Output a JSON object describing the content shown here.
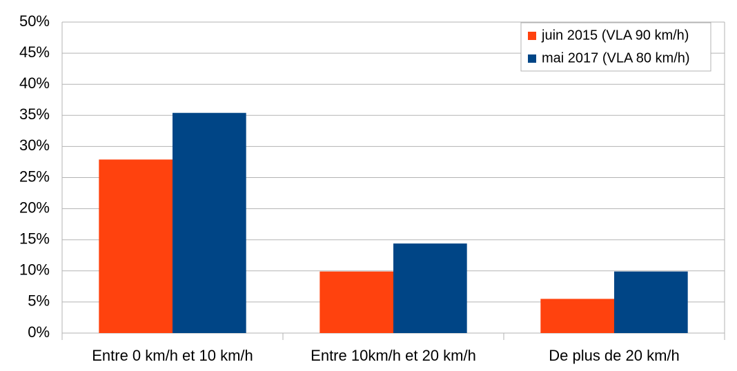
{
  "chart_data": {
    "type": "bar",
    "categories": [
      "Entre 0 km/h et 10 km/h",
      "Entre 10km/h et 20 km/h",
      "De plus de 20 km/h"
    ],
    "series": [
      {
        "name": "juin 2015 (VLA 90 km/h)",
        "color": "#ff420e",
        "values": [
          27.9,
          9.9,
          5.5
        ]
      },
      {
        "name": "mai 2017 (VLA 80 km/h)",
        "color": "#004586",
        "values": [
          35.4,
          14.4,
          9.9
        ]
      }
    ],
    "ylim": [
      0,
      50
    ],
    "yticks": [
      {
        "value": 0,
        "label": "0%"
      },
      {
        "value": 5,
        "label": "5%"
      },
      {
        "value": 10,
        "label": "10%"
      },
      {
        "value": 15,
        "label": "15%"
      },
      {
        "value": 20,
        "label": "20%"
      },
      {
        "value": 25,
        "label": "25%"
      },
      {
        "value": 30,
        "label": "30%"
      },
      {
        "value": 35,
        "label": "35%"
      },
      {
        "value": 40,
        "label": "40%"
      },
      {
        "value": 45,
        "label": "45%"
      },
      {
        "value": 50,
        "label": "50%"
      }
    ],
    "grid": true,
    "legend": "upper-right"
  }
}
